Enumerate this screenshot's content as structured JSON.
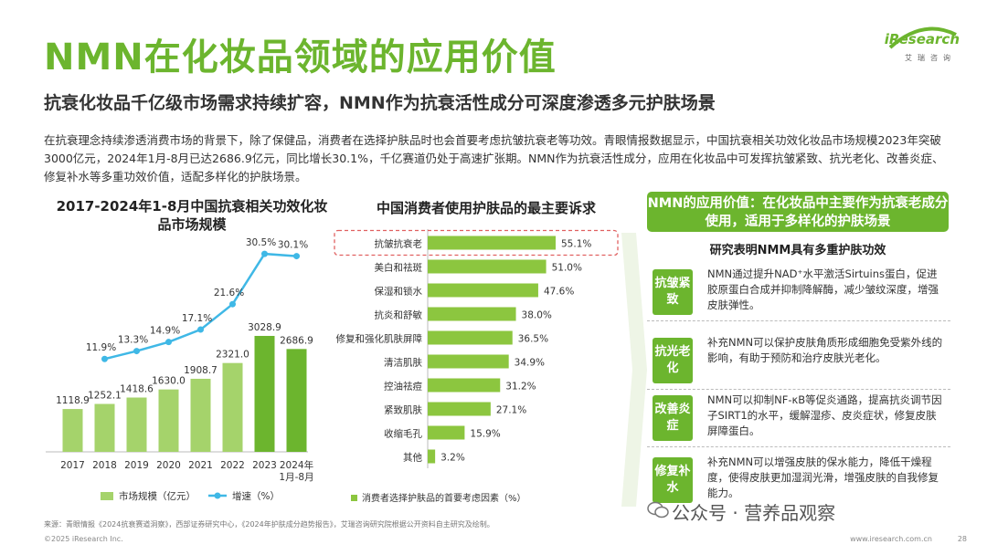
{
  "header": {
    "title": "NMN在化妆品领域的应用价值",
    "subtitle": "抗衰化妆品千亿级市场需求持续扩容，NMN作为抗衰活性成分可深度渗透多元护肤场景",
    "intro": "在抗衰理念持续渗透消费市场的背景下，除了保健品，消费者在选择护肤品时也会首要考虑抗皱抗衰老等功效。青眼情报数据显示，中国抗衰相关功效化妆品市场规模2023年突破3000亿元，2024年1月-8月已达2686.9亿元，同比增长30.1%，千亿赛道仍处于高速扩张期。NMN作为抗衰活性成分，应用在化妆品中可发挥抗皱紧致、抗光老化、改善炎症、修复补水等多重功效价值，适配多样化的护肤场景。"
  },
  "logo": {
    "name": "iResearch",
    "sub": "艾瑞咨询"
  },
  "chart_data": [
    {
      "type": "bar",
      "title": "2017-2024年1-8月中国抗衰相关功效化妆品市场规模",
      "categories": [
        "2017",
        "2018",
        "2019",
        "2020",
        "2021",
        "2022",
        "2023",
        "2024年1月-8月"
      ],
      "category_lines": [
        [
          "2017"
        ],
        [
          "2018"
        ],
        [
          "2019"
        ],
        [
          "2020"
        ],
        [
          "2021"
        ],
        [
          "2022"
        ],
        [
          "2023"
        ],
        [
          "2024年",
          "1月-8月"
        ]
      ],
      "series": [
        {
          "name": "市场规模（亿元）",
          "kind": "bar",
          "values": [
            1118.9,
            1252.1,
            1418.6,
            1630.0,
            1908.7,
            2321.0,
            3028.9,
            2686.9
          ],
          "labels": [
            "1118.9",
            "1252.1",
            "1418.6",
            "1630.0",
            "1908.7",
            "2321.0",
            "3028.9",
            "2686.9"
          ]
        },
        {
          "name": "增速（%）",
          "kind": "line",
          "values": [
            null,
            11.9,
            13.3,
            14.9,
            17.1,
            21.6,
            30.5,
            30.1
          ],
          "labels": [
            "",
            "11.9%",
            "13.3%",
            "14.9%",
            "17.1%",
            "21.6%",
            "30.5%",
            "30.1%"
          ]
        }
      ],
      "colors": {
        "bar_light": "#a5d36b",
        "bar_dark": "#6cb52e",
        "line": "#3fb8e6"
      },
      "legend_position": "bottom"
    },
    {
      "type": "bar",
      "orientation": "horizontal",
      "title": "中国消费者使用护肤品的最主要诉求",
      "categories": [
        "抗皱抗衰老",
        "美白和祛斑",
        "保湿和锁水",
        "抗炎和舒敏",
        "修复和强化肌肤屏障",
        "清洁肌肤",
        "控油祛痘",
        "紧致肌肤",
        "收缩毛孔",
        "其他"
      ],
      "series": [
        {
          "name": "消费者选择护肤品的首要考虑因素（%）",
          "values": [
            55.1,
            51.0,
            47.6,
            38.0,
            36.5,
            34.9,
            31.2,
            27.1,
            15.9,
            3.2
          ],
          "labels": [
            "55.1%",
            "51.0%",
            "47.6%",
            "38.0%",
            "36.5%",
            "34.9%",
            "31.2%",
            "27.1%",
            "15.9%",
            "3.2%"
          ]
        }
      ],
      "highlight_category": "抗皱抗衰老",
      "colors": {
        "bar": "#8cc63f",
        "highlight_border": "#e06060"
      },
      "legend_position": "bottom"
    }
  ],
  "right_panel": {
    "heading": "NMN的应用价值：在化妆品中主要作为抗衰老成分使用，适用于多样化的护肤场景",
    "subheading": "研究表明NMM具有多重护肤功效",
    "benefits": [
      {
        "tag": "抗皱紧致",
        "desc": "NMN通过提升NAD⁺水平激活Sirtuins蛋白，促进胶原蛋白合成并抑制降解酶，减少皱纹深度，增强皮肤弹性。"
      },
      {
        "tag": "抗光老化",
        "desc": "补充NMN可以保护皮肤角质形成细胞免受紫外线的影响，有助于预防和治疗皮肤光老化。"
      },
      {
        "tag": "改善炎症",
        "desc": "NMN可以抑制NF-κB等促炎通路，提高抗炎调节因子SIRT1的水平，缓解湿疹、皮炎症状，修复皮肤屏障蛋白。"
      },
      {
        "tag": "修复补水",
        "desc": "补充NMN可以增强皮肤的保水能力，降低干燥程度，使得皮肤更加湿润光滑，增强皮肤的自我修复能力。"
      }
    ]
  },
  "footer": {
    "source": "来源：青眼情报《2024抗衰赛道洞察》，西部证券研究中心，《2024年护肤成分趋势报告》，艾瑞咨询研究院根据公开资料自主研究及绘制。",
    "copyright": "©2025 iResearch Inc.",
    "site": "www.iresearch.com.cn",
    "page": "28",
    "watermark": "公众号 · 营养品观察"
  }
}
